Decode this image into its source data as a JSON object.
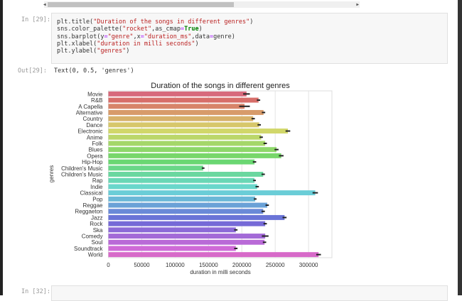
{
  "cell_in": {
    "prompt": "In [29]:",
    "lines": [
      [
        "plt.title(",
        "\"Duration of the songs in different genres\"",
        ")"
      ],
      [
        "sns.color_palette(",
        "\"rocket\"",
        ",as_cmap",
        "=",
        "True",
        ")"
      ],
      [
        "sns.barplot(y",
        "=",
        "\"genre\"",
        ",x",
        "=",
        "\"duration_ms\"",
        ",data",
        "=",
        "genre)"
      ],
      [
        "plt.xlabel(",
        "\"duration in milli seconds\"",
        ")"
      ],
      [
        "plt.ylabel(",
        "\"genres\"",
        ")"
      ]
    ]
  },
  "cell_out": {
    "prompt": "Out[29]:",
    "text": "Text(0, 0.5, 'genres')"
  },
  "next_cell": {
    "prompt": "In [32]:"
  },
  "chart_data": {
    "type": "bar",
    "orientation": "horizontal",
    "title": "Duration of the songs in different genres",
    "xlabel": "duration in milli seconds",
    "ylabel": "genres",
    "xlim": [
      0,
      335000
    ],
    "xticks": [
      0,
      50000,
      100000,
      150000,
      200000,
      250000,
      300000
    ],
    "grid": true,
    "palette": "husl",
    "categories": [
      "Movie",
      "R&B",
      "A Capella",
      "Alternative",
      "Country",
      "Dance",
      "Electronic",
      "Anime",
      "Folk",
      "Blues",
      "Opera",
      "Hip-Hop",
      "Children's Music",
      "Children’s Music",
      "Rap",
      "Indie",
      "Classical",
      "Pop",
      "Reggae",
      "Reggaeton",
      "Jazz",
      "Rock",
      "Ska",
      "Comedy",
      "Soul",
      "Soundtrack",
      "World"
    ],
    "values": [
      207000,
      225000,
      204000,
      232500,
      217000,
      226000,
      269000,
      229000,
      235000,
      252000,
      259000,
      219000,
      142000,
      232000,
      219000,
      223000,
      310000,
      220000,
      238000,
      232000,
      264000,
      235000,
      191000,
      235000,
      234000,
      191000,
      315000
    ],
    "error": [
      5000,
      2500,
      8000,
      2500,
      2500,
      2500,
      3500,
      2500,
      2500,
      3000,
      3500,
      2500,
      2000,
      2500,
      2000,
      2500,
      4000,
      2000,
      2500,
      2500,
      3000,
      2500,
      2500,
      5000,
      2500,
      2500,
      3500
    ]
  }
}
